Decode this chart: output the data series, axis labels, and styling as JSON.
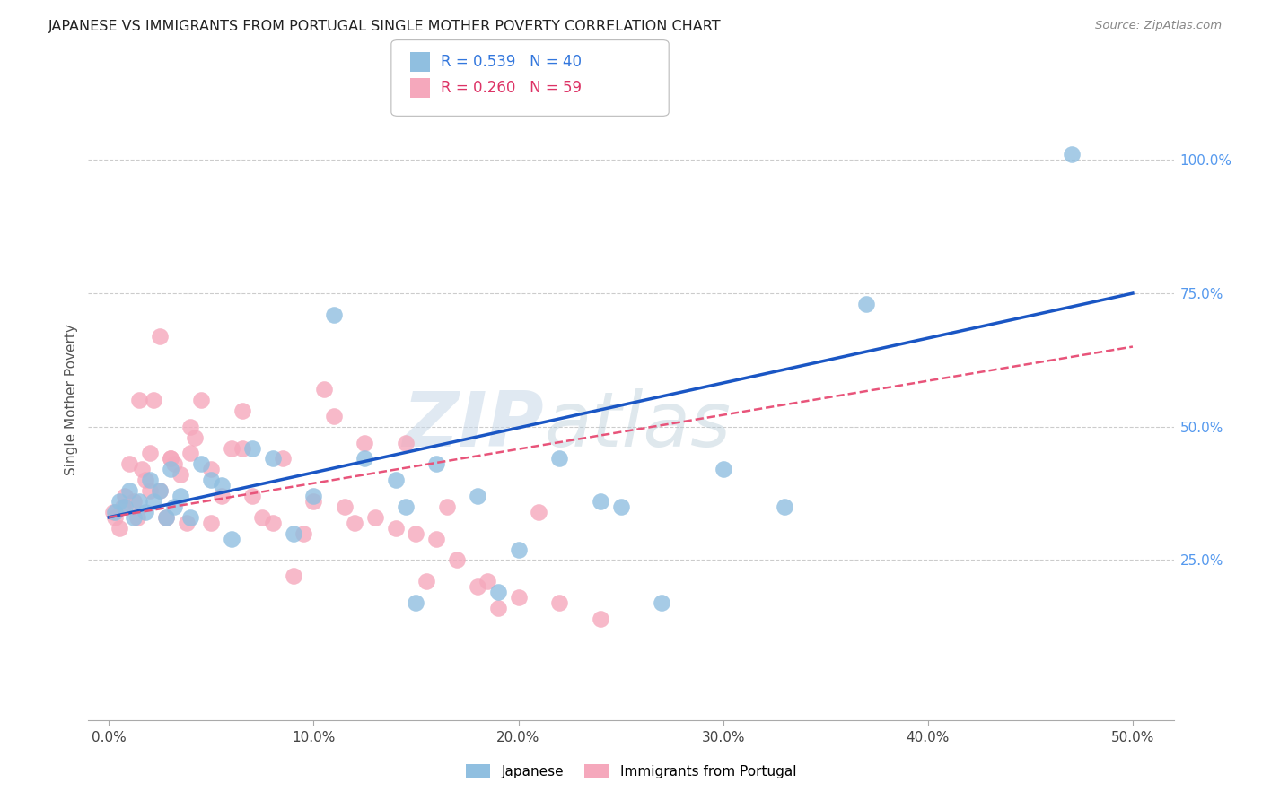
{
  "title": "JAPANESE VS IMMIGRANTS FROM PORTUGAL SINGLE MOTHER POVERTY CORRELATION CHART",
  "source": "Source: ZipAtlas.com",
  "ylabel_label": "Single Mother Poverty",
  "x_tick_values": [
    0,
    10,
    20,
    30,
    40,
    50
  ],
  "y_tick_values": [
    25,
    50,
    75,
    100
  ],
  "xlim": [
    -1,
    52
  ],
  "ylim": [
    -5,
    115
  ],
  "plot_xlim": [
    0,
    50
  ],
  "plot_ylim": [
    0,
    110
  ],
  "legend_label1": "Japanese",
  "legend_label2": "Immigrants from Portugal",
  "R1": "0.539",
  "N1": "40",
  "R2": "0.260",
  "N2": "59",
  "blue_color": "#90bfe0",
  "pink_color": "#f5a8bc",
  "line_blue": "#1a56c4",
  "line_pink": "#e8547a",
  "japanese_x": [
    0.3,
    0.5,
    0.8,
    1.0,
    1.2,
    1.5,
    1.8,
    2.0,
    2.2,
    2.5,
    2.8,
    3.0,
    3.2,
    3.5,
    4.0,
    4.5,
    5.0,
    5.5,
    6.0,
    7.0,
    8.0,
    9.0,
    10.0,
    11.0,
    12.5,
    14.0,
    15.0,
    16.0,
    18.0,
    19.0,
    20.0,
    22.0,
    24.0,
    25.0,
    27.0,
    30.0,
    33.0,
    37.0,
    47.0,
    14.5
  ],
  "japanese_y": [
    34,
    36,
    35,
    38,
    33,
    36,
    34,
    40,
    36,
    38,
    33,
    42,
    35,
    37,
    33,
    43,
    40,
    39,
    29,
    46,
    44,
    30,
    37,
    71,
    44,
    40,
    17,
    43,
    37,
    19,
    27,
    44,
    36,
    35,
    17,
    42,
    35,
    73,
    101,
    35
  ],
  "portugal_x": [
    0.2,
    0.3,
    0.5,
    0.7,
    0.8,
    1.0,
    1.2,
    1.4,
    1.6,
    1.8,
    2.0,
    2.2,
    2.5,
    2.8,
    3.0,
    3.2,
    3.5,
    3.8,
    4.0,
    4.2,
    4.5,
    5.0,
    5.5,
    6.0,
    6.5,
    7.0,
    7.5,
    8.0,
    9.0,
    9.5,
    10.0,
    10.5,
    11.0,
    11.5,
    12.0,
    13.0,
    14.0,
    14.5,
    15.5,
    16.0,
    17.0,
    18.0,
    19.0,
    20.0,
    21.0,
    1.5,
    2.0,
    3.0,
    4.0,
    5.0,
    6.5,
    8.5,
    12.5,
    15.0,
    16.5,
    18.5,
    22.0,
    24.0,
    2.5
  ],
  "portugal_y": [
    34,
    33,
    31,
    35,
    37,
    43,
    36,
    33,
    42,
    40,
    38,
    55,
    38,
    33,
    44,
    43,
    41,
    32,
    45,
    48,
    55,
    42,
    37,
    46,
    53,
    37,
    33,
    32,
    22,
    30,
    36,
    57,
    52,
    35,
    32,
    33,
    31,
    47,
    21,
    29,
    25,
    20,
    16,
    18,
    34,
    55,
    45,
    44,
    50,
    32,
    46,
    44,
    47,
    30,
    35,
    21,
    17,
    14,
    67
  ]
}
